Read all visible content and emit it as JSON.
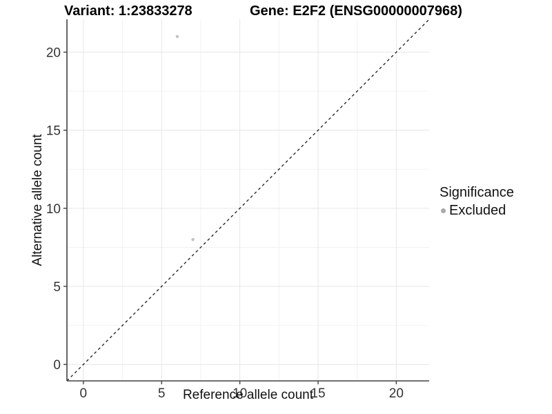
{
  "chart_data": {
    "type": "scatter",
    "titles": {
      "variant": "Variant: 1:23833278",
      "gene": "Gene: E2F2 (ENSG00000007968)"
    },
    "xlabel": "Reference allele count",
    "ylabel": "Alternative allele count",
    "xlim": [
      -1.05,
      22.1
    ],
    "ylim": [
      -1.05,
      22.1
    ],
    "major_ticks": [
      0,
      5,
      10,
      15,
      20
    ],
    "minor_gridlines": [
      2.5,
      7.5,
      12.5,
      17.5
    ],
    "points": [
      {
        "x": 6,
        "y": 21,
        "significance": "Excluded"
      },
      {
        "x": 7,
        "y": 8,
        "significance": "Excluded"
      }
    ],
    "identity_line": {
      "type": "y=x",
      "style": "dashed"
    },
    "legend": {
      "title": "Significance",
      "position": "right",
      "items": [
        {
          "label": "Excluded",
          "color": "#a9a9a9"
        }
      ]
    },
    "grid": true,
    "colors": {
      "point": "#c0c0c0",
      "grid_major": "#e6e6e6",
      "grid_minor": "#f2f2f2",
      "axis_line": "#404040",
      "tick_label": "#333333",
      "identity_line": "#1a1a1a",
      "background": "#ffffff"
    }
  }
}
